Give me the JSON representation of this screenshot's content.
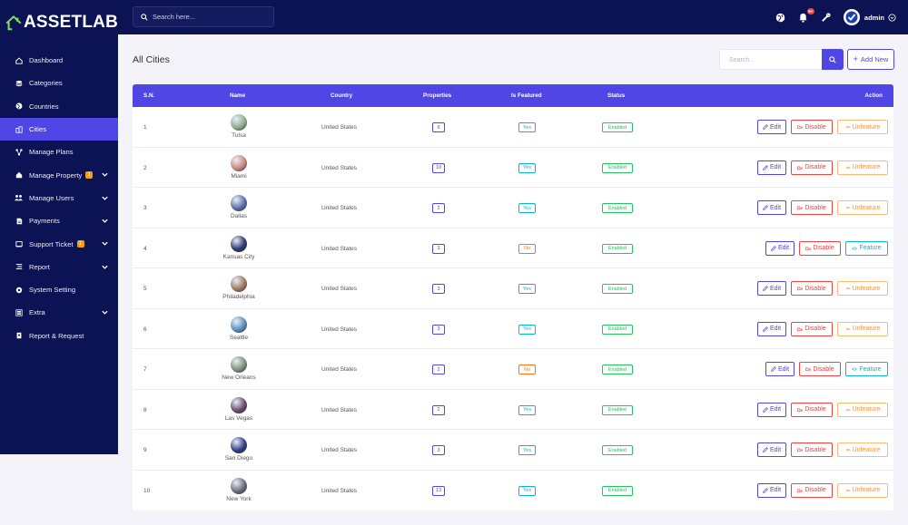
{
  "brand": {
    "name": "ASSETLAB"
  },
  "topbar": {
    "search_placeholder": "Search here...",
    "notification_count": "9+",
    "user": "admin"
  },
  "sidebar": {
    "items": [
      {
        "label": "Dashboard",
        "icon": "home-icon",
        "active": false,
        "badge": null,
        "chevron": false
      },
      {
        "label": "Categories",
        "icon": "layers-icon",
        "active": false,
        "badge": null,
        "chevron": false
      },
      {
        "label": "Countries",
        "icon": "globe-icon",
        "active": false,
        "badge": null,
        "chevron": false
      },
      {
        "label": "Cities",
        "icon": "city-icon",
        "active": true,
        "badge": null,
        "chevron": false
      },
      {
        "label": "Manage Plans",
        "icon": "plans-icon",
        "active": false,
        "badge": null,
        "chevron": false
      },
      {
        "label": "Manage Property",
        "icon": "property-icon",
        "active": false,
        "badge": "1",
        "chevron": true
      },
      {
        "label": "Manage Users",
        "icon": "users-icon",
        "active": false,
        "badge": null,
        "chevron": true
      },
      {
        "label": "Payments",
        "icon": "payments-icon",
        "active": false,
        "badge": null,
        "chevron": true
      },
      {
        "label": "Support Ticket",
        "icon": "ticket-icon",
        "active": false,
        "badge": "1",
        "chevron": true
      },
      {
        "label": "Report",
        "icon": "report-icon",
        "active": false,
        "badge": null,
        "chevron": true
      },
      {
        "label": "System Setting",
        "icon": "settings-icon",
        "active": false,
        "badge": null,
        "chevron": false
      },
      {
        "label": "Extra",
        "icon": "extra-icon",
        "active": false,
        "badge": null,
        "chevron": true
      },
      {
        "label": "Report & Request",
        "icon": "request-icon",
        "active": false,
        "badge": null,
        "chevron": false
      }
    ]
  },
  "main": {
    "title": "All Cities",
    "search_placeholder": "Search...",
    "add_label": "Add New"
  },
  "table": {
    "headers": {
      "sn": "S.N.",
      "name": "Name",
      "country": "Country",
      "properties": "Properties",
      "featured": "Is Featured",
      "status": "Status",
      "action": "Action"
    },
    "actions": {
      "edit": "Edit",
      "disable": "Disable",
      "unfeature": "Unfeature",
      "feature": "Feature"
    },
    "rows": [
      {
        "sn": "1",
        "name": "Tulsa",
        "country": "United States",
        "properties": "6",
        "featured": "Yes",
        "status": "Enabled",
        "img_color": "#8fae8a"
      },
      {
        "sn": "2",
        "name": "Miami",
        "country": "United States",
        "properties": "10",
        "featured": "Yes",
        "status": "Enabled",
        "img_color": "#c98a7a"
      },
      {
        "sn": "3",
        "name": "Dallas",
        "country": "United States",
        "properties": "2",
        "featured": "Yes",
        "status": "Enabled",
        "img_color": "#5b6fa8"
      },
      {
        "sn": "4",
        "name": "Kansas City",
        "country": "United States",
        "properties": "3",
        "featured": "No",
        "status": "Enabled",
        "img_color": "#2c3a6e"
      },
      {
        "sn": "5",
        "name": "Philadelphia",
        "country": "United States",
        "properties": "3",
        "featured": "Yes",
        "status": "Enabled",
        "img_color": "#9c7b5e"
      },
      {
        "sn": "6",
        "name": "Seattle",
        "country": "United States",
        "properties": "3",
        "featured": "Yes",
        "status": "Enabled",
        "img_color": "#5e8fb8"
      },
      {
        "sn": "7",
        "name": "New Orleans",
        "country": "United States",
        "properties": "2",
        "featured": "No",
        "status": "Enabled",
        "img_color": "#7f8f7a"
      },
      {
        "sn": "8",
        "name": "Las Vegas",
        "country": "United States",
        "properties": "2",
        "featured": "Yes",
        "status": "Enabled",
        "img_color": "#6b4a6e"
      },
      {
        "sn": "9",
        "name": "San Diego",
        "country": "United States",
        "properties": "3",
        "featured": "Yes",
        "status": "Enabled",
        "img_color": "#2f3f82"
      },
      {
        "sn": "10",
        "name": "New York",
        "country": "United States",
        "properties": "13",
        "featured": "Yes",
        "status": "Enabled",
        "img_color": "#6c6f7a"
      }
    ]
  },
  "colors": {
    "sidebar_bg": "#0c1354",
    "accent": "#4f46e5",
    "logo_green": "#7ed957"
  }
}
